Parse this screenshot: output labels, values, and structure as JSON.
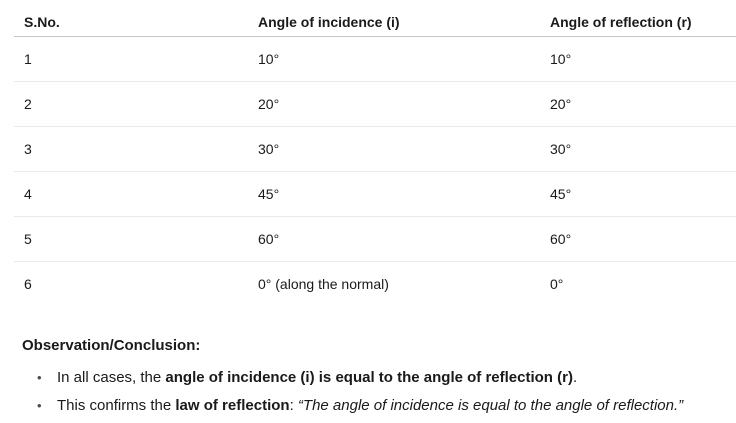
{
  "colors": {
    "text": "#1a1a1a",
    "header_border": "#c6c6c6",
    "row_border": "#e9e9e9",
    "background": "#ffffff"
  },
  "table": {
    "columns": [
      "S.No.",
      "Angle of incidence (i)",
      "Angle of reflection (r)"
    ],
    "rows": [
      {
        "sno": "1",
        "incidence": "10°",
        "reflection": "10°"
      },
      {
        "sno": "2",
        "incidence": "20°",
        "reflection": "20°"
      },
      {
        "sno": "3",
        "incidence": "30°",
        "reflection": "30°"
      },
      {
        "sno": "4",
        "incidence": "45°",
        "reflection": "45°"
      },
      {
        "sno": "5",
        "incidence": "60°",
        "reflection": "60°"
      },
      {
        "sno": "6",
        "incidence": "0° (along the normal)",
        "reflection": "0°"
      }
    ]
  },
  "conclusion": {
    "heading": "Observation/Conclusion:",
    "bullet_glyph": "•",
    "bullets": [
      {
        "pre": "In all cases, the ",
        "bold": "angle of incidence (i) is equal to the angle of reflection (r)",
        "post": "."
      },
      {
        "pre": "This confirms the ",
        "bold": "law of reflection",
        "post": ": ",
        "italic": "“The angle of incidence is equal to the angle of reflection.”"
      }
    ]
  }
}
